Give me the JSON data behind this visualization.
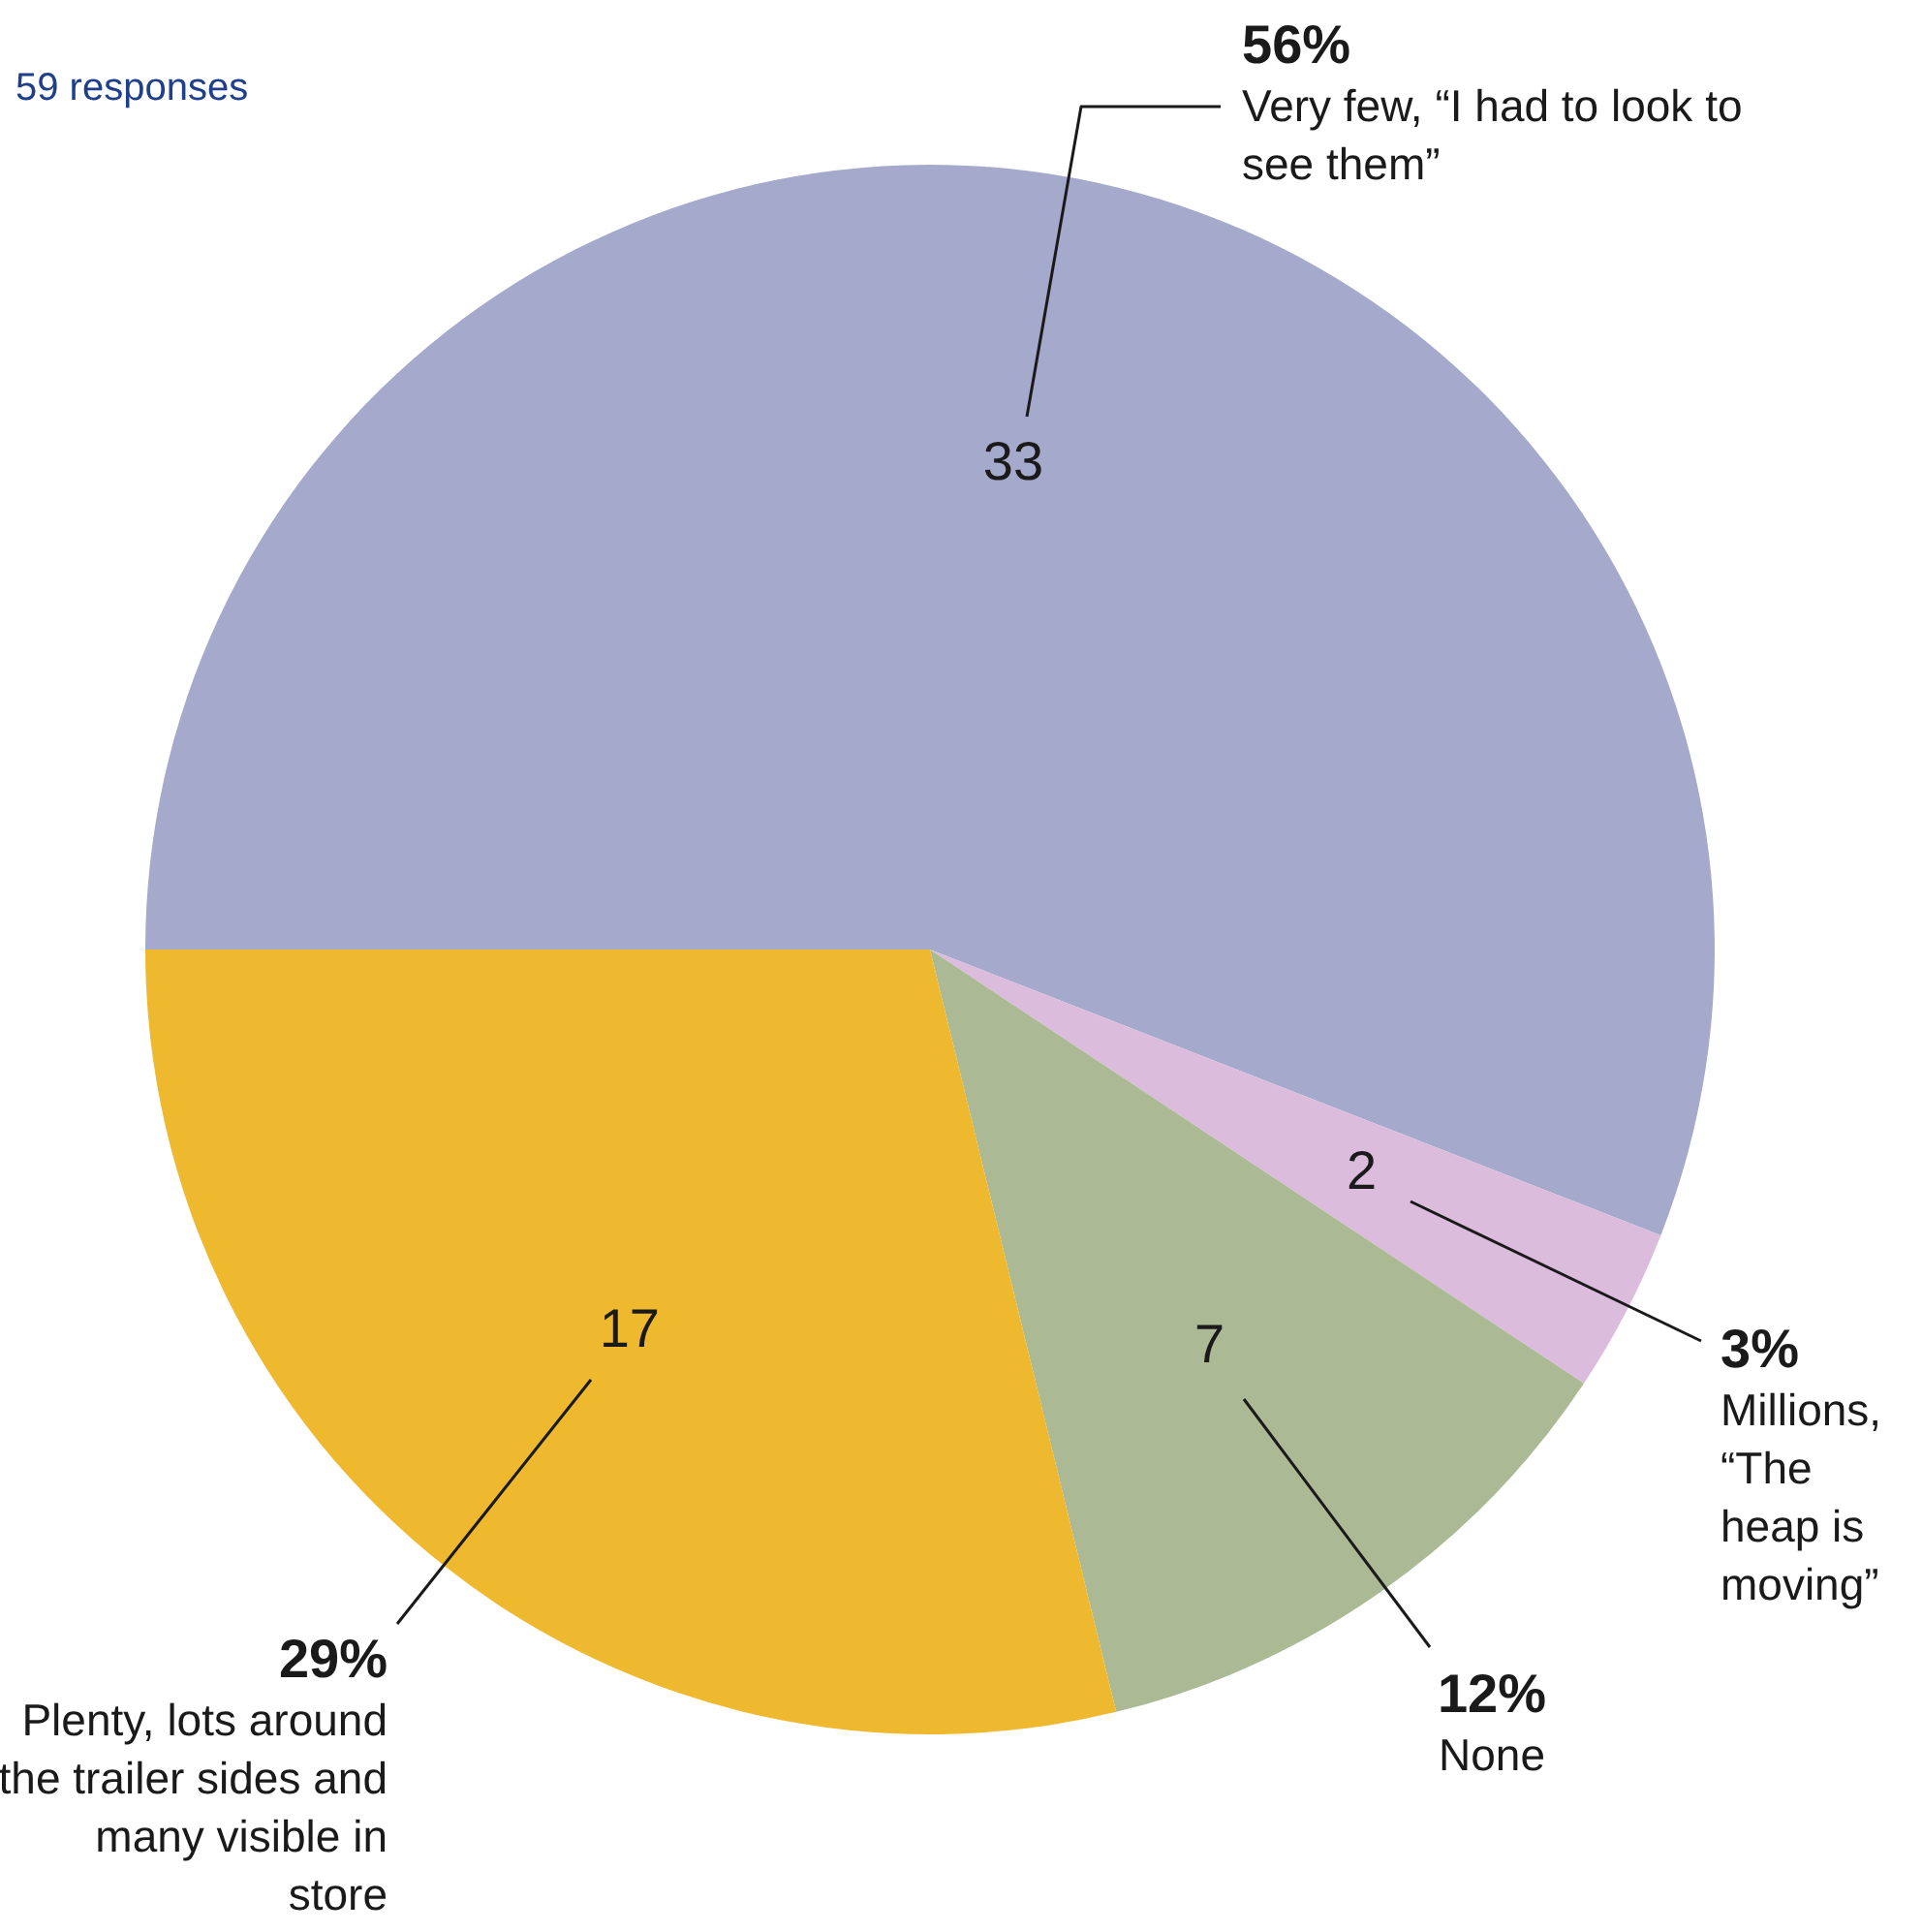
{
  "chart_data": {
    "type": "pie",
    "subtitle": "59 responses",
    "categories": [
      "Very few, “I had to look to see them”",
      "Millions, “The heap is moving”",
      "None",
      "Plenty, lots around the trailer sides and many visible in store"
    ],
    "values": [
      33,
      2,
      7,
      17
    ],
    "colors": [
      "#a5a9cb",
      "#dbbcdc",
      "#abb994",
      "#efb92f"
    ],
    "data_labels": true,
    "annotations": [
      "56%",
      "3%",
      "12%",
      "29%"
    ]
  }
}
